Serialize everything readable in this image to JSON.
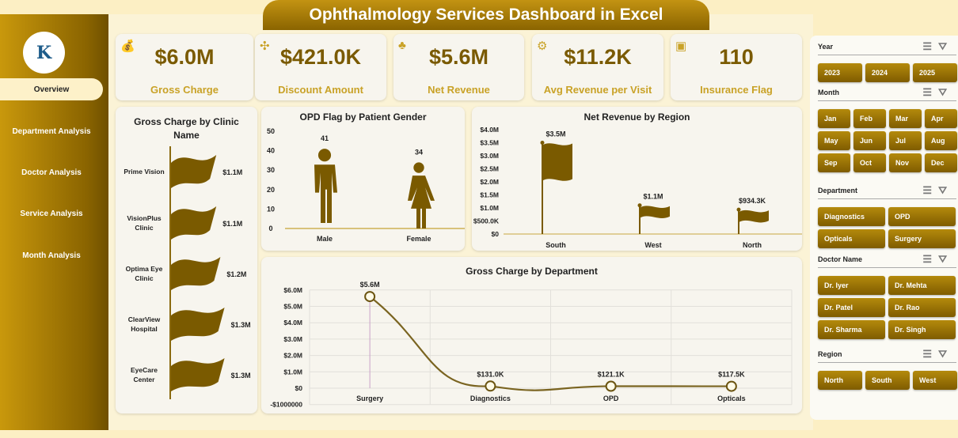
{
  "title": "Ophthalmology Services Dashboard in Excel",
  "logo_text": "K",
  "nav": [
    {
      "label": "Overview",
      "active": true
    },
    {
      "label": "Department Analysis"
    },
    {
      "label": "Doctor Analysis"
    },
    {
      "label": "Service Analysis"
    },
    {
      "label": "Month Analysis"
    }
  ],
  "kpis": [
    {
      "value": "$6.0M",
      "label": "Gross Charge",
      "icon": "money-stack-icon"
    },
    {
      "value": "$421.0K",
      "label": "Discount Amount",
      "icon": "discount-icon"
    },
    {
      "value": "$5.6M",
      "label": "Net Revenue",
      "icon": "money-bags-icon"
    },
    {
      "value": "$11.2K",
      "label": "Avg Revenue per Visit",
      "icon": "visit-icon"
    },
    {
      "value": "110",
      "label": "Insurance Flag",
      "icon": "insurance-icon"
    }
  ],
  "slicers": {
    "year": {
      "title": "Year",
      "items": [
        "2023",
        "2024",
        "2025"
      ]
    },
    "month": {
      "title": "Month",
      "items": [
        "Jan",
        "Feb",
        "Mar",
        "Apr",
        "May",
        "Jun",
        "Jul",
        "Aug",
        "Sep",
        "Oct",
        "Nov",
        "Dec"
      ]
    },
    "department": {
      "title": "Department",
      "items": [
        "Diagnostics",
        "OPD",
        "Opticals",
        "Surgery"
      ]
    },
    "doctor": {
      "title": "Doctor Name",
      "items": [
        "Dr. Iyer",
        "Dr. Mehta",
        "Dr. Patel",
        "Dr. Rao",
        "Dr. Sharma",
        "Dr. Singh"
      ]
    },
    "region": {
      "title": "Region",
      "items": [
        "North",
        "South",
        "West"
      ]
    }
  },
  "colors": {
    "gold": "#7a5a00",
    "accent": "#c9a227"
  },
  "chart_data": [
    {
      "type": "bar",
      "title": "Gross Charge by Clinic Name",
      "categories": [
        "Prime Vision",
        "VisionPlus Clinic",
        "Optima Eye Clinic",
        "ClearView Hospital",
        "EyeCare Center"
      ],
      "values": [
        1.1,
        1.1,
        1.2,
        1.3,
        1.3
      ],
      "labels": [
        "$1.1M",
        "$1.1M",
        "$1.2M",
        "$1.3M",
        "$1.3M"
      ],
      "unit": "$M"
    },
    {
      "type": "bar",
      "title": "OPD Flag by Patient Gender",
      "categories": [
        "Male",
        "Female"
      ],
      "values": [
        41,
        34
      ],
      "labels": [
        "41",
        "34"
      ],
      "ylim": [
        0,
        50
      ],
      "yticks": [
        "0",
        "10",
        "20",
        "30",
        "40",
        "50"
      ]
    },
    {
      "type": "bar",
      "title": "Net Revenue by Region",
      "categories": [
        "South",
        "West",
        "North"
      ],
      "values": [
        3.5,
        1.1,
        0.9343
      ],
      "labels": [
        "$3.5M",
        "$1.1M",
        "$934.3K"
      ],
      "ylim": [
        0,
        4
      ],
      "yticks": [
        "$0",
        "$500.0K",
        "$1.0M",
        "$1.5M",
        "$2.0M",
        "$2.5M",
        "$3.0M",
        "$3.5M",
        "$4.0M"
      ],
      "unit": "$M"
    },
    {
      "type": "line",
      "title": "Gross Charge by Department",
      "categories": [
        "Surgery",
        "Diagnostics",
        "OPD",
        "Opticals"
      ],
      "values": [
        5.6,
        0.131,
        0.1211,
        0.1175
      ],
      "labels": [
        "$5.6M",
        "$131.0K",
        "$121.1K",
        "$117.5K"
      ],
      "ylim": [
        -1,
        6
      ],
      "yticks": [
        "-$1000000",
        "$0",
        "$1.0M",
        "$2.0M",
        "$3.0M",
        "$4.0M",
        "$5.0M",
        "$6.0M"
      ],
      "unit": "$M"
    }
  ]
}
